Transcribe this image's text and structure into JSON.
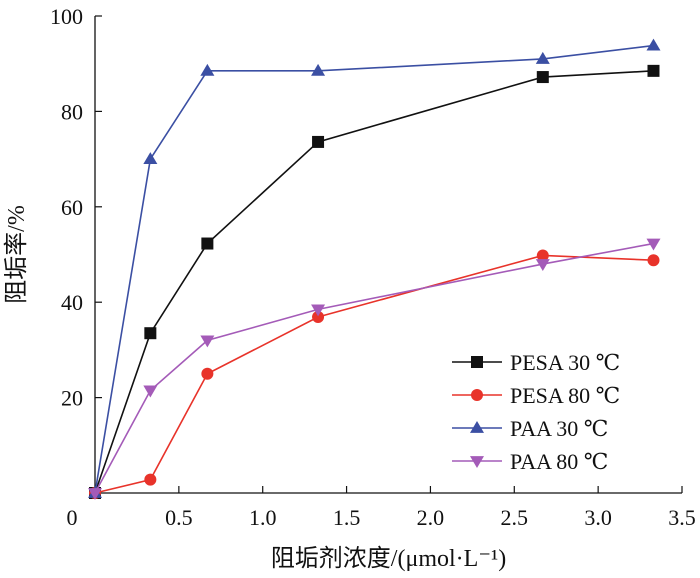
{
  "chart_data": {
    "type": "line",
    "xlabel": "阻垢剂浓度/(μmol·L⁻¹)",
    "ylabel": "阻垢率/%",
    "xlim": [
      0,
      3.5
    ],
    "ylim": [
      0,
      100
    ],
    "xticks": [
      "0",
      "0.5",
      "1.0",
      "1.5",
      "2.0",
      "2.5",
      "3.0",
      "3.5"
    ],
    "yticks": [
      "20",
      "40",
      "60",
      "80",
      "100"
    ],
    "grid": false,
    "legend_position": "bottom-right",
    "series": [
      {
        "name": "PESA 30 ℃",
        "color": "#111111",
        "marker": "square",
        "x": [
          0,
          0.33,
          0.67,
          1.33,
          2.67,
          3.33
        ],
        "y": [
          0,
          33.5,
          52.3,
          73.6,
          87.2,
          88.5
        ]
      },
      {
        "name": "PESA 80 ℃",
        "color": "#e8332a",
        "marker": "circle",
        "x": [
          0,
          0.33,
          0.67,
          1.33,
          2.67,
          3.33
        ],
        "y": [
          0,
          2.8,
          25.0,
          36.9,
          49.8,
          48.8
        ]
      },
      {
        "name": "PAA 30 ℃",
        "color": "#3b4fa3",
        "marker": "triangle-up",
        "x": [
          0,
          0.33,
          0.67,
          1.33,
          2.67,
          3.33
        ],
        "y": [
          0,
          70.0,
          88.5,
          88.5,
          91.0,
          93.8
        ]
      },
      {
        "name": "PAA 80 ℃",
        "color": "#a45bb8",
        "marker": "triangle-down",
        "x": [
          0,
          0.33,
          0.67,
          1.33,
          2.67,
          3.33
        ],
        "y": [
          0,
          21.5,
          32.0,
          38.5,
          48.0,
          52.3
        ]
      }
    ]
  }
}
